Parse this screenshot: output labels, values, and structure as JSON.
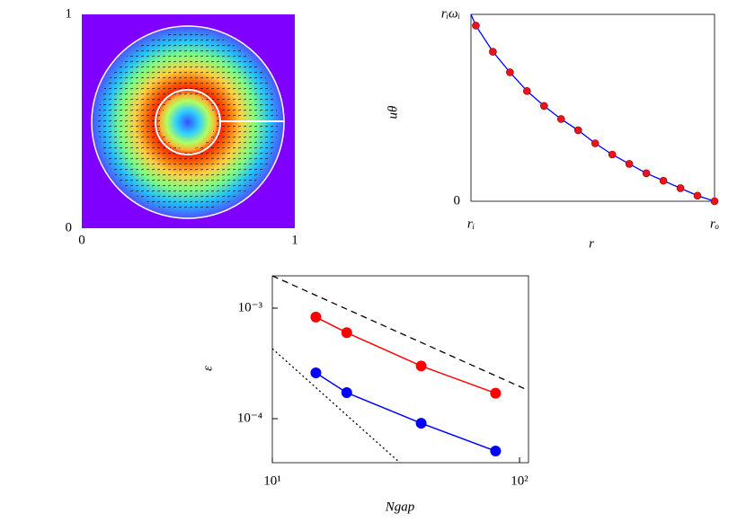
{
  "chart_data": [
    {
      "type": "heatmap",
      "xlim": [
        0,
        1
      ],
      "ylim": [
        0,
        1
      ],
      "xticks": [
        0,
        1
      ],
      "yticks": [
        0,
        1
      ]
    },
    {
      "type": "line",
      "xlabel": "r",
      "ylabel": "uθ",
      "xlim": [
        0,
        1
      ],
      "ylim": [
        0,
        1
      ],
      "xticks": [
        {
          "value": 0,
          "label": "rᵢ"
        },
        {
          "value": 1,
          "label": "rₒ"
        }
      ],
      "yticks": [
        0,
        {
          "value": 1,
          "label": "rᵢωᵢ"
        }
      ],
      "series": [
        {
          "color": "#0000ff",
          "style": "line",
          "x": [
            0,
            0.02,
            0.09,
            0.16,
            0.23,
            0.3,
            0.37,
            0.44,
            0.51,
            0.58,
            0.65,
            0.72,
            0.79,
            0.86,
            0.93,
            1.0
          ],
          "values": [
            1,
            0.94,
            0.8,
            0.69,
            0.59,
            0.51,
            0.44,
            0.38,
            0.31,
            0.25,
            0.2,
            0.15,
            0.11,
            0.07,
            0.03,
            0
          ]
        },
        {
          "color": "#e8141e",
          "style": "markers",
          "x": [
            0.02,
            0.09,
            0.16,
            0.23,
            0.3,
            0.37,
            0.44,
            0.51,
            0.58,
            0.65,
            0.72,
            0.79,
            0.86,
            0.93,
            1.0
          ],
          "values": [
            0.94,
            0.8,
            0.69,
            0.59,
            0.51,
            0.44,
            0.38,
            0.31,
            0.25,
            0.2,
            0.15,
            0.11,
            0.07,
            0.03,
            0
          ]
        }
      ]
    },
    {
      "type": "line",
      "xlabel": "Ngap",
      "ylabel": "ε",
      "log_x": true,
      "log_y": true,
      "xlim": [
        10,
        108.7
      ],
      "ylim": [
        4e-05,
        0.00196
      ],
      "xticks": [
        {
          "value": 10,
          "label": "10¹"
        },
        {
          "value": 100,
          "label": "10²"
        }
      ],
      "yticks": [
        {
          "value": 0.001,
          "label": "10⁻³"
        },
        {
          "value": 0.0001,
          "label": "10⁻⁴"
        }
      ],
      "series": [
        {
          "color": "#ff0000",
          "style": "line+markers",
          "x": [
            15,
            20,
            40,
            80
          ],
          "values": [
            0.00083,
            0.0006,
            0.0003,
            0.00017
          ]
        },
        {
          "color": "#0000ff",
          "style": "line+markers",
          "x": [
            15,
            20,
            40,
            80
          ],
          "values": [
            0.00026,
            0.000172,
            9.1e-05,
            5.1e-05
          ]
        },
        {
          "color": "#000000",
          "style": "dashed",
          "x": [
            10,
            108.7
          ],
          "values": [
            0.00196,
            0.00018
          ]
        },
        {
          "color": "#000000",
          "style": "dotted",
          "x": [
            10,
            32.8
          ],
          "values": [
            0.00043,
            4e-05
          ]
        }
      ]
    }
  ]
}
